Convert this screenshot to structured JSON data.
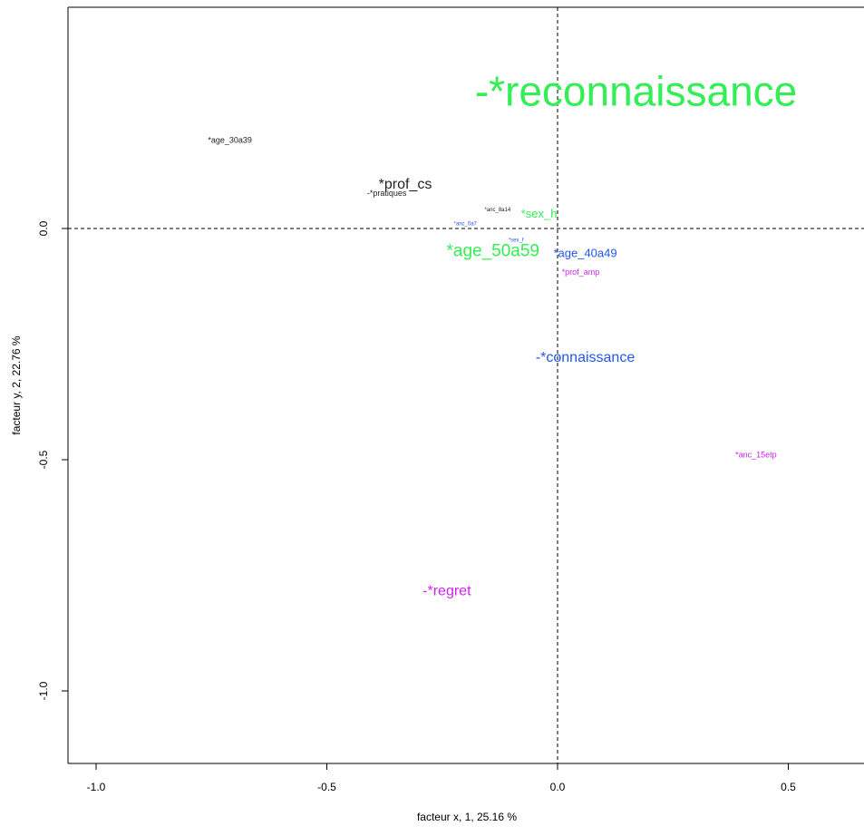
{
  "chart_data": {
    "type": "scatter",
    "title": "",
    "xlabel": "facteur x, 1, 25.16 %",
    "ylabel": "facteur y, 2, 22.76 %",
    "xlim": [
      -1.07,
      0.66
    ],
    "ylim": [
      -1.16,
      0.48
    ],
    "x_ticks": [
      "-1.0",
      "-0.5",
      "0.0",
      "0.5"
    ],
    "y_ticks": [
      "-1.0",
      "-0.5",
      "0.0"
    ],
    "x_tick_values": [
      -1.0,
      -0.5,
      0.0,
      0.5
    ],
    "y_tick_values": [
      -1.0,
      -0.5,
      0.0
    ],
    "reference_lines": {
      "x": 0.0,
      "y": 0.0,
      "style": "dashed"
    },
    "grid": false,
    "colors": {
      "green": "#33ee55",
      "blue": "#2255ee",
      "magenta": "#cc22ee",
      "black": "#222222"
    },
    "points": [
      {
        "label": "-*reconnaissance",
        "x": 0.17,
        "y": 0.29,
        "color": "green",
        "size": "xlarge"
      },
      {
        "label": "*age_30a39",
        "x": -0.71,
        "y": 0.19,
        "color": "black",
        "size": "xsmall"
      },
      {
        "label": "*prof_cs",
        "x": -0.33,
        "y": 0.095,
        "color": "black",
        "size": "medium"
      },
      {
        "label": "-*pratiques",
        "x": -0.37,
        "y": 0.075,
        "color": "black",
        "size": "xsmall"
      },
      {
        "label": "*anc_8a14",
        "x": -0.13,
        "y": 0.04,
        "color": "black",
        "size": "tiny"
      },
      {
        "label": "*sex_h",
        "x": -0.04,
        "y": 0.03,
        "color": "green",
        "size": "small"
      },
      {
        "label": "*anc_0a7",
        "x": -0.2,
        "y": 0.01,
        "color": "blue",
        "size": "tiny"
      },
      {
        "label": "*sex_f",
        "x": -0.09,
        "y": -0.025,
        "color": "blue",
        "size": "tiny"
      },
      {
        "label": "*age_50a59",
        "x": -0.14,
        "y": -0.05,
        "color": "green",
        "size": "large"
      },
      {
        "label": "*age_40a49",
        "x": 0.06,
        "y": -0.055,
        "color": "blue",
        "size": "small"
      },
      {
        "label": "*prof_amp",
        "x": 0.05,
        "y": -0.095,
        "color": "magenta",
        "size": "xsmall"
      },
      {
        "label": "-*connaissance",
        "x": 0.06,
        "y": -0.28,
        "color": "blue",
        "size": "medium"
      },
      {
        "label": "*anc_15etp",
        "x": 0.43,
        "y": -0.49,
        "color": "magenta",
        "size": "xsmall"
      },
      {
        "label": "-*regret",
        "x": -0.24,
        "y": -0.785,
        "color": "magenta",
        "size": "medium"
      }
    ]
  }
}
